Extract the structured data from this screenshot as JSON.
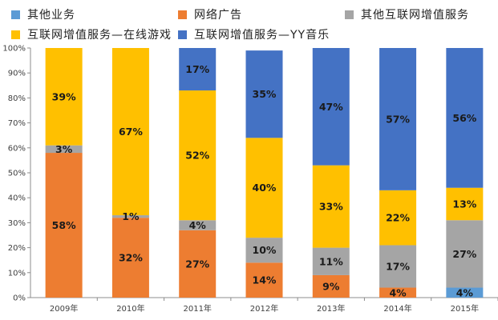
{
  "chart_data": {
    "type": "bar",
    "stacked": true,
    "categories": [
      "2009年",
      "2010年",
      "2011年",
      "2012年",
      "2013年",
      "2014年",
      "2015年"
    ],
    "series": [
      {
        "name": "其他业务",
        "color": "#5B9BD5",
        "values": [
          0,
          0,
          0,
          0,
          0,
          0,
          4
        ],
        "labels": [
          "",
          "",
          "",
          "",
          "",
          "",
          "4%"
        ]
      },
      {
        "name": "网络广告",
        "color": "#ED7D31",
        "values": [
          58,
          32,
          27,
          14,
          9,
          4,
          0
        ],
        "labels": [
          "58%",
          "32%",
          "27%",
          "14%",
          "9%",
          "4%",
          ""
        ]
      },
      {
        "name": "其他互联网增值服务",
        "color": "#A5A5A5",
        "values": [
          3,
          1,
          4,
          10,
          11,
          17,
          27
        ],
        "labels": [
          "3%",
          "1%",
          "4%",
          "10%",
          "11%",
          "17%",
          "27%"
        ]
      },
      {
        "name": "互联网增值服务—在线游戏",
        "color": "#FFC000",
        "values": [
          39,
          67,
          52,
          40,
          33,
          22,
          13
        ],
        "labels": [
          "39%",
          "67%",
          "52%",
          "40%",
          "33%",
          "22%",
          "13%"
        ]
      },
      {
        "name": "互联网增值服务—YY音乐",
        "color": "#4472C4",
        "values": [
          0,
          0,
          17,
          35,
          47,
          57,
          56
        ],
        "labels": [
          "",
          "",
          "17%",
          "35%",
          "47%",
          "57%",
          "56%"
        ]
      }
    ],
    "y_ticks": [
      "0%",
      "10%",
      "20%",
      "30%",
      "40%",
      "50%",
      "60%",
      "70%",
      "80%",
      "90%",
      "100%"
    ],
    "ylim": [
      0,
      100
    ],
    "grid": false,
    "legend_position": "top"
  }
}
